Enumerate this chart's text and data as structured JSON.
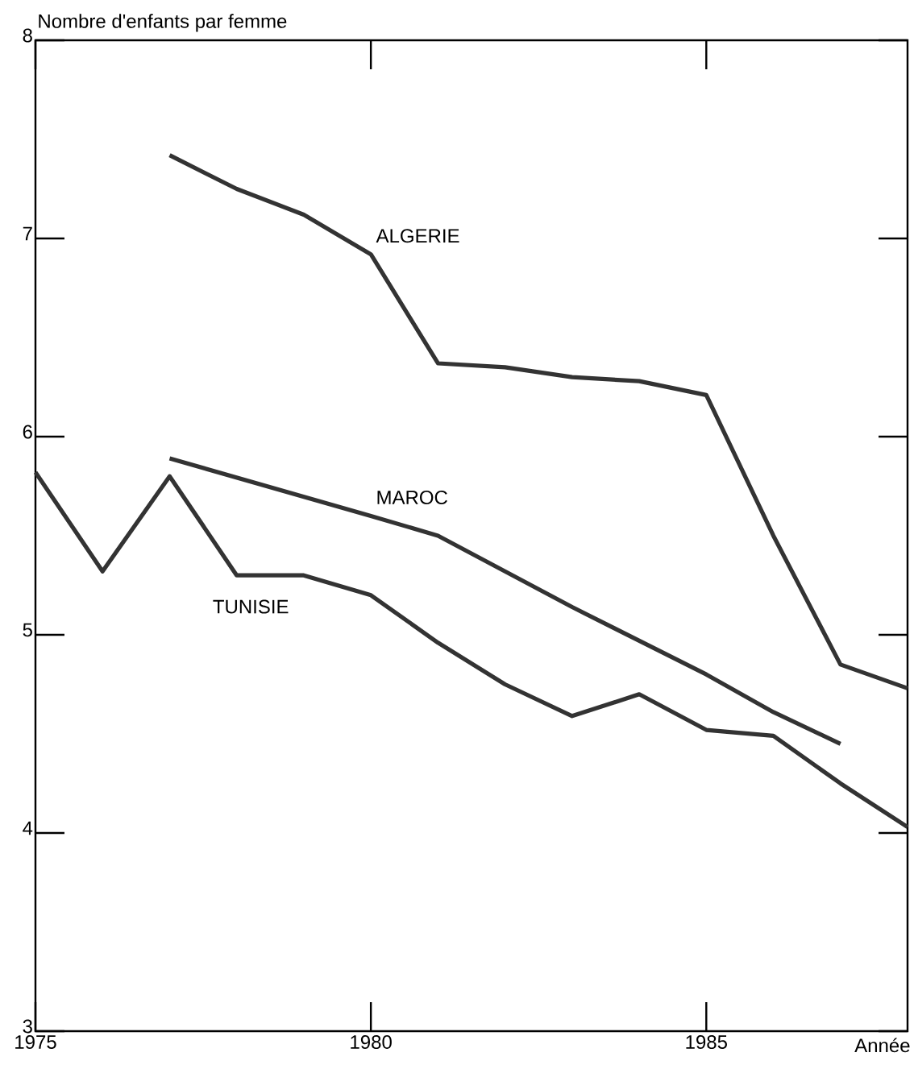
{
  "chart_data": {
    "type": "line",
    "xlabel": "Année",
    "ylabel": "Nombre d'enfants par femme",
    "xlim": [
      1975,
      1988
    ],
    "ylim": [
      3,
      8
    ],
    "xticks": [
      1975,
      1980,
      1985
    ],
    "yticks": [
      3,
      4,
      5,
      6,
      7,
      8
    ],
    "marker": "none",
    "line_style": "solid",
    "series": [
      {
        "name": "ALGERIE",
        "color": "#333333",
        "x": [
          1977,
          1978,
          1979,
          1980,
          1981,
          1982,
          1983,
          1984,
          1985,
          1986,
          1987,
          1988
        ],
        "values": [
          7.42,
          7.25,
          7.12,
          6.92,
          6.37,
          6.35,
          6.3,
          6.28,
          6.21,
          5.5,
          4.85,
          4.73
        ]
      },
      {
        "name": "MAROC",
        "color": "#333333",
        "x": [
          1977,
          1980,
          1981,
          1982,
          1983,
          1984,
          1985,
          1986,
          1987
        ],
        "values": [
          5.89,
          5.6,
          5.5,
          5.32,
          5.14,
          4.97,
          4.8,
          4.61,
          4.45
        ]
      },
      {
        "name": "TUNISIE",
        "color": "#333333",
        "x": [
          1975,
          1976,
          1977,
          1978,
          1979,
          1980,
          1981,
          1982,
          1983,
          1984,
          1985,
          1986,
          1987,
          1988
        ],
        "values": [
          5.82,
          5.32,
          5.8,
          5.3,
          5.3,
          5.2,
          4.96,
          4.75,
          4.59,
          4.7,
          4.52,
          4.49,
          4.25,
          4.03
        ]
      }
    ]
  }
}
